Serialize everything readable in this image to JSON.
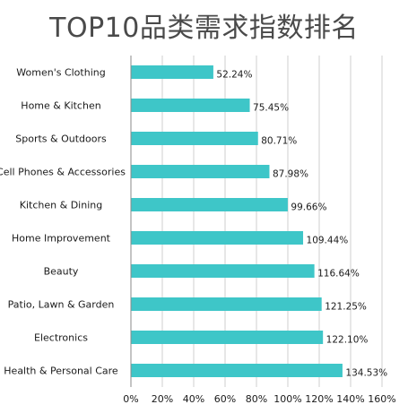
{
  "chart_data": {
    "type": "bar",
    "orientation": "horizontal",
    "title": "TOP10品类需求指数排名",
    "categories": [
      "Women's Clothing",
      "Home & Kitchen",
      "Sports & Outdoors",
      "Cell Phones & Accessories",
      "Kitchen & Dining",
      "Home Improvement",
      "Beauty",
      "Patio, Lawn & Garden",
      "Electronics",
      "Health & Personal Care"
    ],
    "values": [
      52.24,
      75.45,
      80.71,
      87.98,
      99.66,
      109.44,
      116.64,
      121.25,
      122.1,
      134.53
    ],
    "value_labels": [
      "52.24%",
      "75.45%",
      "80.71%",
      "87.98%",
      "99.66%",
      "109.44%",
      "116.64%",
      "121.25%",
      "122.10%",
      "134.53%"
    ],
    "xlim": [
      0,
      160
    ],
    "xticks": [
      "0%",
      "20%",
      "40%",
      "60%",
      "80%",
      "100%",
      "120%",
      "140%",
      "160%"
    ],
    "grid": "vertical",
    "bar_color": "#3ec6c8"
  }
}
